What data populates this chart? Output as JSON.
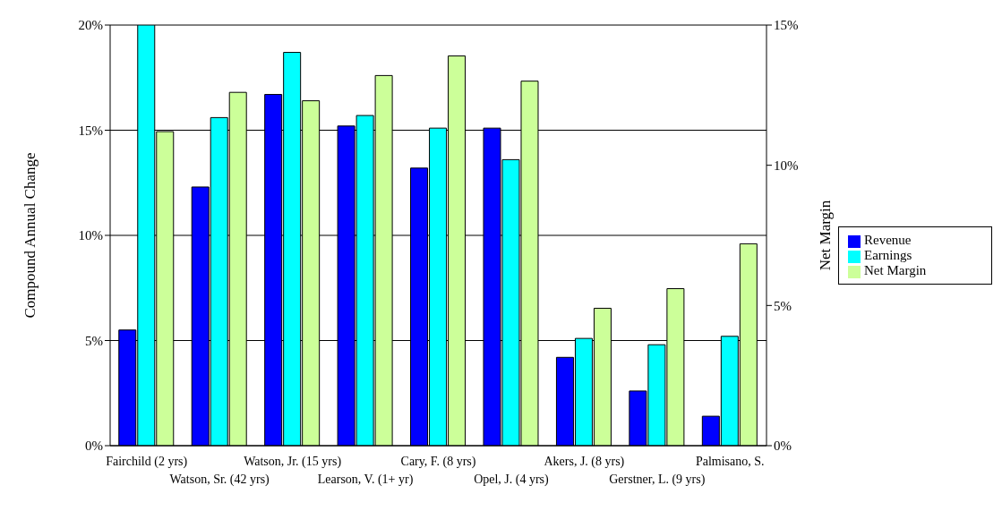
{
  "chart_data": {
    "type": "bar",
    "ylabel": "Compound Annual Change",
    "y2label": "Net Margin",
    "categories": [
      "Fairchild (2 yrs)",
      "Watson, Sr. (42 yrs)",
      "Watson, Jr. (15 yrs)",
      "Learson, V. (1+ yr)",
      "Cary, F. (8 yrs)",
      "Opel, J. (4 yrs)",
      "Akers, J. (8 yrs)",
      "Gerstner, L. (9 yrs)",
      "Palmisano, S."
    ],
    "series": [
      {
        "name": "Revenue",
        "color": "#0000ff",
        "values": [
          5.5,
          12.3,
          16.7,
          15.2,
          13.2,
          15.1,
          4.2,
          2.6,
          1.4
        ]
      },
      {
        "name": "Earnings",
        "color": "#00ffff",
        "values": [
          20.0,
          15.6,
          18.7,
          15.7,
          15.1,
          13.6,
          5.1,
          4.8,
          5.2
        ]
      },
      {
        "name": "Net Margin",
        "color": "#ccff99",
        "axis": "y2",
        "values": [
          11.2,
          12.6,
          12.3,
          13.2,
          13.9,
          13.0,
          4.9,
          5.6,
          7.2
        ]
      }
    ],
    "ylim": [
      0,
      20
    ],
    "yticks": [
      {
        "value": 0,
        "label": "0%"
      },
      {
        "value": 5,
        "label": "5%"
      },
      {
        "value": 10,
        "label": "10%"
      },
      {
        "value": 15,
        "label": "15%"
      },
      {
        "value": 20,
        "label": "20%"
      }
    ],
    "y2lim": [
      0,
      15
    ],
    "y2ticks": [
      {
        "value": 0,
        "label": "0%"
      },
      {
        "value": 5,
        "label": "5%"
      },
      {
        "value": 10,
        "label": "10%"
      },
      {
        "value": 15,
        "label": "15%"
      }
    ],
    "grid": "y",
    "legend": "right"
  }
}
